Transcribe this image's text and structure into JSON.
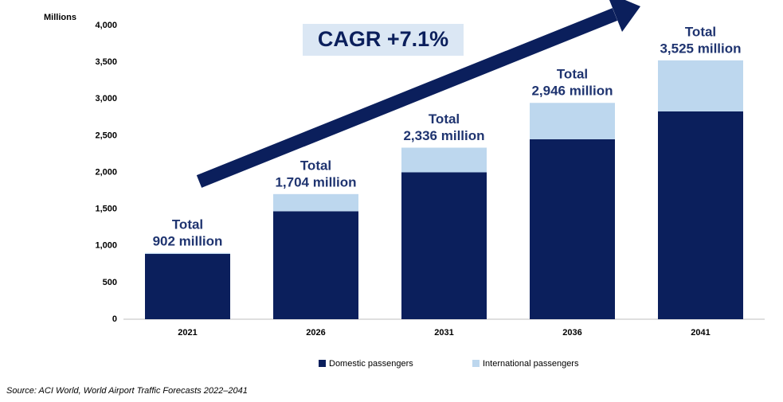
{
  "chart_data": {
    "type": "stacked_bar",
    "y_axis_label": "Millions",
    "categories": [
      "2021",
      "2026",
      "2031",
      "2036",
      "2041"
    ],
    "series": [
      {
        "name": "Domestic passengers",
        "color": "#0b1f5c",
        "values": [
          890,
          1470,
          2000,
          2450,
          2830
        ]
      },
      {
        "name": "International passengers",
        "color": "#bdd7ee",
        "values": [
          12,
          234,
          336,
          496,
          695
        ]
      }
    ],
    "total_labels": [
      [
        "Total",
        "902 million"
      ],
      [
        "Total",
        "1,704 million"
      ],
      [
        "Total",
        "2,336 million"
      ],
      [
        "Total",
        "2,946 million"
      ],
      [
        "Total",
        "3,525 million"
      ]
    ],
    "annotation": "CAGR +7.1%",
    "ylim": [
      0,
      4000
    ],
    "yticks": [
      0,
      500,
      {
        "value": 1000,
        "label": "1,000"
      },
      {
        "value": 1500,
        "label": "1,500"
      },
      {
        "value": 2000,
        "label": "2,000"
      },
      {
        "value": 2500,
        "label": "2,500"
      },
      {
        "value": 3000,
        "label": "3,000"
      },
      {
        "value": 3500,
        "label": "3,500"
      },
      {
        "value": 4000,
        "label": "4,000"
      }
    ],
    "legend": "bottom",
    "source": "Source: ACI World, World Airport Traffic Forecasts 2022–2041"
  }
}
